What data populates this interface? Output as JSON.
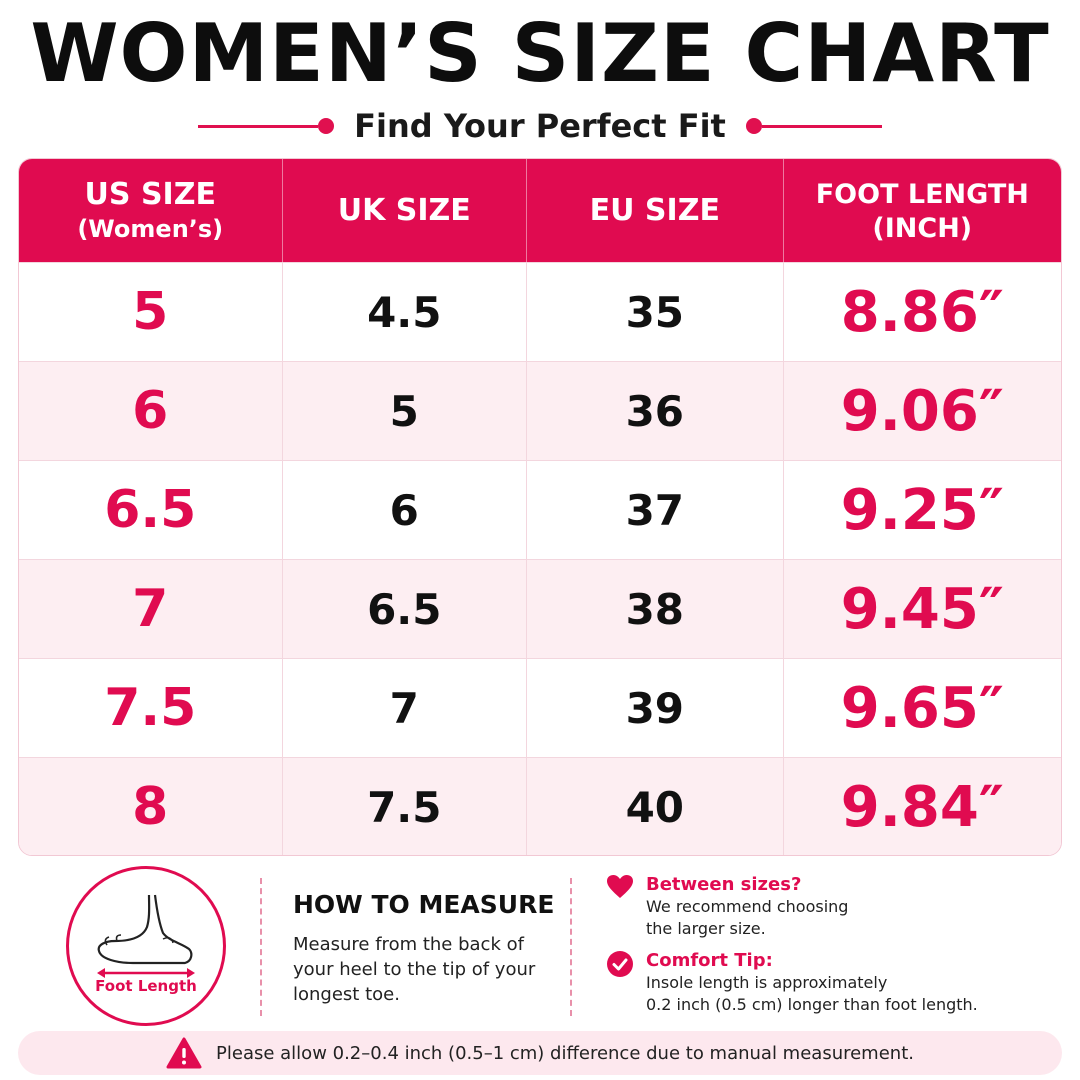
{
  "title": "WOMEN’S SIZE CHART",
  "subtitle": "Find Your Perfect Fit",
  "colors": {
    "accent": "#e00b50",
    "row_alt": "#fdeef2"
  },
  "table": {
    "headers": [
      {
        "line1": "US SIZE",
        "line2": "(Women’s)"
      },
      {
        "line1": "UK SIZE",
        "line2": ""
      },
      {
        "line1": "EU SIZE",
        "line2": ""
      },
      {
        "line1": "FOOT LENGTH",
        "line2": "(INCH)"
      }
    ],
    "rows": [
      {
        "us": "5",
        "uk": "4.5",
        "eu": "35",
        "foot": "8.86″"
      },
      {
        "us": "6",
        "uk": "5",
        "eu": "36",
        "foot": "9.06″"
      },
      {
        "us": "6.5",
        "uk": "6",
        "eu": "37",
        "foot": "9.25″"
      },
      {
        "us": "7",
        "uk": "6.5",
        "eu": "38",
        "foot": "9.45″"
      },
      {
        "us": "7.5",
        "uk": "7",
        "eu": "39",
        "foot": "9.65″"
      },
      {
        "us": "8",
        "uk": "7.5",
        "eu": "40",
        "foot": "9.84″"
      }
    ]
  },
  "measure": {
    "icon": "foot-icon",
    "foot_label": "Foot Length",
    "title": "HOW TO MEASURE",
    "text": "Measure from the back of your heel to the tip of your longest toe."
  },
  "tips": [
    {
      "icon": "heart-icon",
      "title": "Between sizes?",
      "line1": "We recommend choosing",
      "line2": "the larger size."
    },
    {
      "icon": "check-circle-icon",
      "title": "Comfort Tip:",
      "line1": "Insole length is approximately",
      "line2": "0.2 inch (0.5 cm) longer than foot length."
    }
  ],
  "notice": {
    "icon": "warning-icon",
    "text": "Please allow 0.2–0.4 inch (0.5–1 cm) difference due to manual measurement."
  }
}
